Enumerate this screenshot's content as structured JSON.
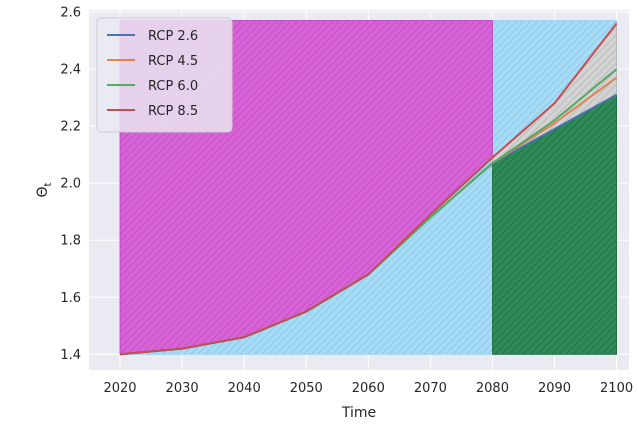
{
  "chart_data": {
    "type": "line",
    "title": "",
    "xlabel": "Time",
    "ylabel": "Θ_t",
    "ylabel_main": "Θ",
    "ylabel_sub": "t",
    "xlim": [
      2015,
      2102
    ],
    "ylim": [
      1.345,
      2.607
    ],
    "x_ticks": [
      2020,
      2030,
      2040,
      2050,
      2060,
      2070,
      2080,
      2090,
      2100
    ],
    "x_tick_labels": [
      "2020",
      "2030",
      "2040",
      "2050",
      "2060",
      "2070",
      "2080",
      "2090",
      "2100"
    ],
    "y_ticks": [
      1.4,
      1.6,
      1.8,
      2.0,
      2.2,
      2.4,
      2.6
    ],
    "y_tick_labels": [
      "1.4",
      "1.6",
      "1.8",
      "2.0",
      "2.2",
      "2.4",
      "2.6"
    ],
    "grid": true,
    "legend_position": "top-left",
    "x": [
      2020,
      2030,
      2040,
      2050,
      2060,
      2070,
      2080,
      2090,
      2100
    ],
    "series": [
      {
        "name": "RCP 2.6",
        "color": "#4c72b0",
        "values": [
          1.4,
          1.42,
          1.46,
          1.55,
          1.68,
          1.88,
          2.07,
          2.19,
          2.31
        ]
      },
      {
        "name": "RCP 4.5",
        "color": "#dd8452",
        "values": [
          1.4,
          1.42,
          1.46,
          1.55,
          1.68,
          1.88,
          2.07,
          2.21,
          2.37
        ]
      },
      {
        "name": "RCP 6.0",
        "color": "#55a868",
        "values": [
          1.4,
          1.42,
          1.46,
          1.55,
          1.68,
          1.88,
          2.07,
          2.22,
          2.4
        ]
      },
      {
        "name": "RCP 8.5",
        "color": "#c44e52",
        "values": [
          1.4,
          1.42,
          1.46,
          1.55,
          1.68,
          1.89,
          2.09,
          2.28,
          2.56
        ]
      }
    ],
    "shaded_regions": [
      {
        "kind": "background-band",
        "color": "#a8dcf5",
        "x_range": [
          2020,
          2100
        ],
        "y_range": [
          1.4,
          2.57
        ]
      },
      {
        "kind": "above-curve",
        "color": "#d45ad4",
        "x_range": [
          2020,
          2080
        ],
        "y_top": 2.57
      },
      {
        "kind": "below-curve",
        "color": "#2e8b57",
        "x_range": [
          2080,
          2100
        ],
        "y_bottom": 1.4
      },
      {
        "kind": "between-scenarios",
        "color": "#cccccc",
        "x_range": [
          2080,
          2100
        ]
      }
    ]
  }
}
